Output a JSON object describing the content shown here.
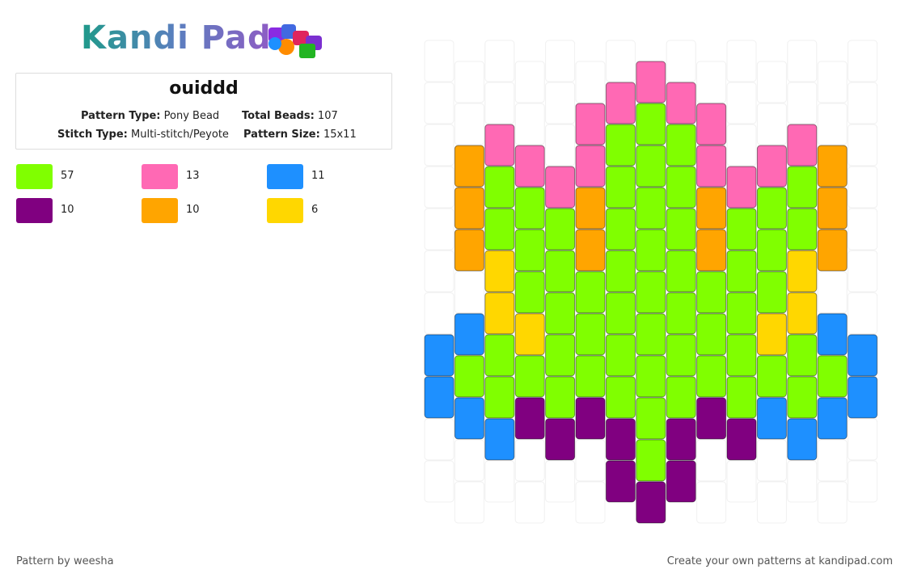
{
  "header": {
    "logo": "Kandi Pad"
  },
  "info": {
    "title": "ouiddd",
    "pattern_type_label": "Pattern Type:",
    "pattern_type": "Pony Bead",
    "total_beads_label": "Total Beads:",
    "total_beads": "107",
    "stitch_type_label": "Stitch Type:",
    "stitch_type": "Multi-stitch/Peyote",
    "pattern_size_label": "Pattern Size:",
    "pattern_size": "15x11"
  },
  "palette": {
    "W": "#ffffff",
    "G": "#80ff00",
    "P": "#ff69b4",
    "B": "#1e90ff",
    "U": "#800080",
    "O": "#ffa500",
    "Y": "#ffd700"
  },
  "legend": [
    {
      "code": "G",
      "count": "57"
    },
    {
      "code": "P",
      "count": "13"
    },
    {
      "code": "B",
      "count": "11"
    },
    {
      "code": "U",
      "count": "10"
    },
    {
      "code": "O",
      "count": "10"
    },
    {
      "code": "Y",
      "count": "6"
    }
  ],
  "beads": [
    "WWWWWWWBBWW",
    "WWOOOWBGBWW",
    "WWPGGYYGGBW",
    "WWPGGGYGUWW",
    "WWWPGGGGGUW",
    "WPPOOGGGUWW",
    "WPGGGGGGGUU",
    "PGGGGGGGGGU",
    "WPGGGGGGGUU",
    "WPPOOGGGUWW",
    "WWWPGGGGGUW",
    "WWPGGGYGBWW",
    "WWPGGYYGGBW",
    "WWOOOWBGBWW",
    "WWWWWWWBBWW"
  ],
  "footer": {
    "left": "Pattern by weesha",
    "right": "Create your own patterns at kandipad.com"
  }
}
